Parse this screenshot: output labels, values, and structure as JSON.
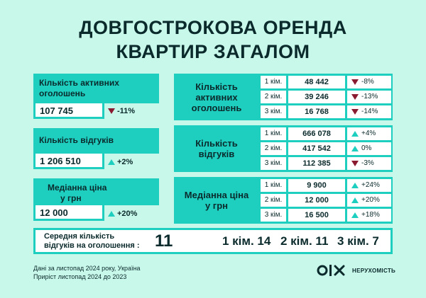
{
  "title": {
    "line1": "ДОВГОСТРОКОВА ОРЕНДА",
    "line2": "КВАРТИР ЗАГАЛОМ"
  },
  "left": {
    "active": {
      "label_line1": "Кількість активних",
      "label_line2": "оголошень",
      "value": "107 745",
      "change": "-11%",
      "direction": "down"
    },
    "responses": {
      "label": "Кількість відгуків",
      "value": "1 206 510",
      "change": "+2%",
      "direction": "up"
    },
    "price": {
      "label_line1": "Медіанна ціна",
      "label_line2": "у грн",
      "value": "12 000",
      "change": "+20%",
      "direction": "up"
    }
  },
  "right": {
    "active": {
      "label_line1": "Кількість",
      "label_line2": "активних",
      "label_line3": "оголошень",
      "rows": [
        {
          "rooms": "1 кім.",
          "value": "48 442",
          "change": "-8%",
          "direction": "down"
        },
        {
          "rooms": "2 кім.",
          "value": "39 246",
          "change": "-13%",
          "direction": "down"
        },
        {
          "rooms": "3 кім.",
          "value": "16 768",
          "change": "-14%",
          "direction": "down"
        }
      ]
    },
    "responses": {
      "label_line1": "Кількість",
      "label_line2": "відгуків",
      "rows": [
        {
          "rooms": "1 кім.",
          "value": "666 078",
          "change": "+4%",
          "direction": "up"
        },
        {
          "rooms": "2 кім.",
          "value": "417 542",
          "change": "0%",
          "direction": "up"
        },
        {
          "rooms": "3 кім.",
          "value": "112 385",
          "change": "-3%",
          "direction": "down"
        }
      ]
    },
    "price": {
      "label_line1": "Медіанна ціна",
      "label_line2": "у грн",
      "rows": [
        {
          "rooms": "1 кім.",
          "value": "9 900",
          "change": "+24%",
          "direction": "up"
        },
        {
          "rooms": "2 кім.",
          "value": "12 000",
          "change": "+20%",
          "direction": "up"
        },
        {
          "rooms": "3 кім.",
          "value": "16 500",
          "change": "+18%",
          "direction": "up"
        }
      ]
    }
  },
  "bottom": {
    "label_line1": "Середня кількість",
    "label_line2": "відгуків на оголошення :",
    "total": "11",
    "r1": "1 кім. 14",
    "r2": "2 кім. 11",
    "r3": "3 кім. 7"
  },
  "footer": {
    "line1": "Дані за листопад 2024 року, Україна",
    "line2": "Приріст листопад 2024 до 2023"
  },
  "logo": {
    "text": "НЕРУХОМІСТЬ"
  },
  "colors": {
    "background": "#c8f8ea",
    "accent": "#1ecfc0",
    "down": "#8a1a2f",
    "text": "#0b2a2c"
  }
}
